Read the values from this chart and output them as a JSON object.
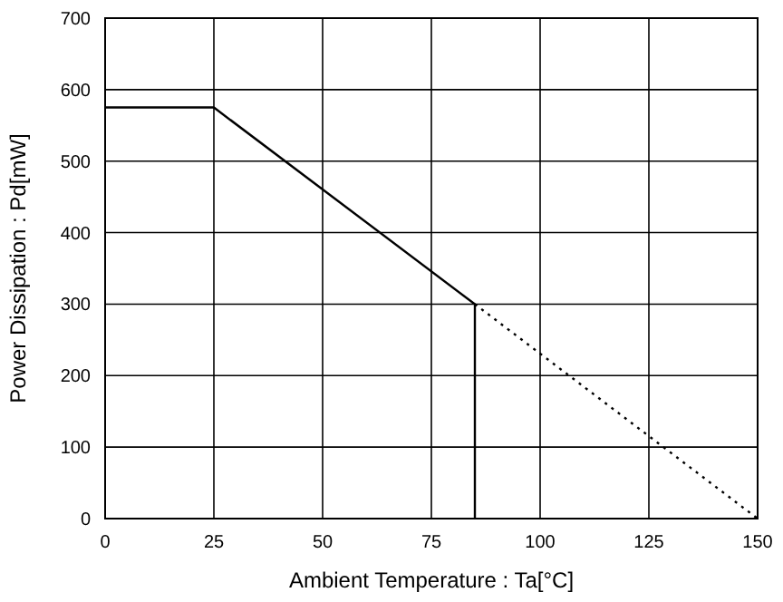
{
  "chart_data": {
    "type": "line",
    "xlabel": "Ambient Temperature : Ta[°C]",
    "ylabel": "Power Dissipation : Pd[mW]",
    "xlim": [
      0,
      150
    ],
    "xticks": [
      0,
      25,
      50,
      75,
      100,
      125,
      150
    ],
    "ylim": [
      0,
      700
    ],
    "yticks": [
      0,
      100,
      200,
      300,
      400,
      500,
      600,
      700
    ],
    "grid": true,
    "marker": "none",
    "series": [
      {
        "color": "#000000",
        "x": [
          0,
          25,
          85,
          85
        ],
        "values": [
          575,
          575,
          300,
          0
        ],
        "line_style": "solid"
      },
      {
        "color": "#000000",
        "x": [
          85,
          150
        ],
        "values": [
          300,
          0
        ],
        "line_style": "dotted"
      }
    ]
  }
}
